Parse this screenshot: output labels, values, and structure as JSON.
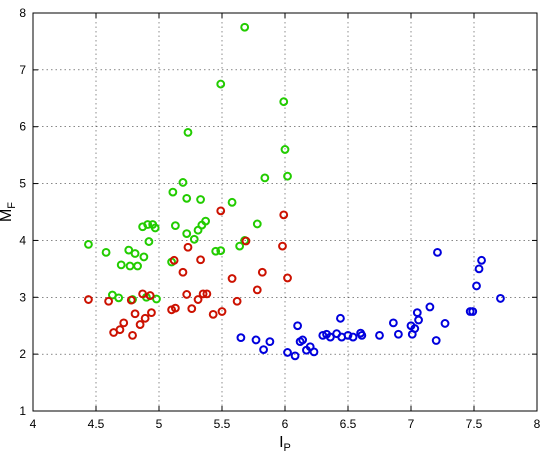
{
  "chart_data": {
    "type": "scatter",
    "title": "",
    "xlabel": {
      "main": "I",
      "sub": "P"
    },
    "ylabel": {
      "main": "M",
      "sub": "F"
    },
    "xlim": [
      4,
      8
    ],
    "ylim": [
      1,
      8
    ],
    "xticks": [
      4,
      4.5,
      5,
      5.5,
      6,
      6.5,
      7,
      7.5,
      8
    ],
    "yticks": [
      1,
      2,
      3,
      4,
      5,
      6,
      7,
      8
    ],
    "xtick_labels": [
      "4",
      "4.5",
      "5",
      "5.5",
      "6",
      "6.5",
      "7",
      "7.5",
      "8"
    ],
    "ytick_labels": [
      "1",
      "2",
      "3",
      "4",
      "5",
      "6",
      "7",
      "8"
    ],
    "grid": true,
    "marker": "circle-open",
    "series": [
      {
        "color": "#22cc00",
        "points": [
          [
            5.68,
            7.75
          ],
          [
            5.49,
            6.75
          ],
          [
            5.99,
            6.44
          ],
          [
            5.23,
            5.9
          ],
          [
            6.0,
            5.6
          ],
          [
            5.19,
            5.02
          ],
          [
            5.84,
            5.1
          ],
          [
            6.02,
            5.13
          ],
          [
            5.11,
            4.85
          ],
          [
            5.22,
            4.74
          ],
          [
            5.33,
            4.72
          ],
          [
            5.58,
            4.67
          ],
          [
            4.44,
            3.93
          ],
          [
            4.58,
            3.79
          ],
          [
            4.76,
            3.83
          ],
          [
            4.81,
            3.77
          ],
          [
            4.87,
            4.24
          ],
          [
            4.91,
            4.28
          ],
          [
            4.95,
            4.28
          ],
          [
            4.97,
            4.22
          ],
          [
            4.92,
            3.98
          ],
          [
            4.88,
            3.71
          ],
          [
            4.7,
            3.57
          ],
          [
            4.77,
            3.55
          ],
          [
            4.83,
            3.55
          ],
          [
            5.13,
            4.26
          ],
          [
            5.22,
            4.12
          ],
          [
            5.28,
            4.02
          ],
          [
            5.31,
            4.18
          ],
          [
            5.34,
            4.27
          ],
          [
            5.37,
            4.34
          ],
          [
            5.45,
            3.81
          ],
          [
            5.49,
            3.82
          ],
          [
            5.64,
            3.9
          ],
          [
            5.68,
            4.0
          ],
          [
            5.78,
            4.29
          ],
          [
            5.1,
            3.62
          ],
          [
            4.63,
            3.04
          ],
          [
            4.68,
            2.99
          ],
          [
            4.79,
            2.96
          ],
          [
            4.9,
            3.0
          ],
          [
            4.98,
            2.97
          ]
        ]
      },
      {
        "color": "#cc1100",
        "points": [
          [
            5.49,
            4.52
          ],
          [
            5.99,
            4.45
          ],
          [
            4.44,
            2.96
          ],
          [
            4.6,
            2.93
          ],
          [
            4.64,
            2.38
          ],
          [
            4.69,
            2.43
          ],
          [
            4.72,
            2.55
          ],
          [
            4.78,
            2.95
          ],
          [
            4.79,
            2.33
          ],
          [
            4.81,
            2.71
          ],
          [
            4.85,
            2.52
          ],
          [
            4.87,
            3.06
          ],
          [
            4.89,
            2.63
          ],
          [
            4.94,
            2.73
          ],
          [
            4.93,
            3.03
          ],
          [
            5.1,
            2.78
          ],
          [
            5.12,
            3.65
          ],
          [
            5.13,
            2.81
          ],
          [
            5.19,
            3.44
          ],
          [
            5.22,
            3.05
          ],
          [
            5.23,
            3.88
          ],
          [
            5.26,
            2.8
          ],
          [
            5.31,
            2.96
          ],
          [
            5.33,
            3.66
          ],
          [
            5.35,
            3.06
          ],
          [
            5.38,
            3.06
          ],
          [
            5.43,
            2.7
          ],
          [
            5.5,
            2.75
          ],
          [
            5.58,
            3.33
          ],
          [
            5.62,
            2.93
          ],
          [
            5.69,
            3.99
          ],
          [
            5.78,
            3.13
          ],
          [
            5.82,
            3.44
          ],
          [
            5.98,
            3.9
          ],
          [
            6.02,
            3.34
          ]
        ]
      },
      {
        "color": "#0000dd",
        "points": [
          [
            5.65,
            2.29
          ],
          [
            5.77,
            2.25
          ],
          [
            5.83,
            2.08
          ],
          [
            5.88,
            2.22
          ],
          [
            6.02,
            2.03
          ],
          [
            6.08,
            1.97
          ],
          [
            6.1,
            2.5
          ],
          [
            6.12,
            2.22
          ],
          [
            6.14,
            2.25
          ],
          [
            6.17,
            2.07
          ],
          [
            6.2,
            2.13
          ],
          [
            6.23,
            2.04
          ],
          [
            6.3,
            2.33
          ],
          [
            6.33,
            2.35
          ],
          [
            6.36,
            2.3
          ],
          [
            6.41,
            2.36
          ],
          [
            6.44,
            2.63
          ],
          [
            6.45,
            2.3
          ],
          [
            6.5,
            2.33
          ],
          [
            6.54,
            2.3
          ],
          [
            6.6,
            2.37
          ],
          [
            6.61,
            2.33
          ],
          [
            6.75,
            2.33
          ],
          [
            6.86,
            2.55
          ],
          [
            6.9,
            2.35
          ],
          [
            7.0,
            2.5
          ],
          [
            7.03,
            2.45
          ],
          [
            7.05,
            2.73
          ],
          [
            7.06,
            2.6
          ],
          [
            7.15,
            2.83
          ],
          [
            7.2,
            2.24
          ],
          [
            7.21,
            3.79
          ],
          [
            7.27,
            2.54
          ],
          [
            7.47,
            2.75
          ],
          [
            7.49,
            2.75
          ],
          [
            7.52,
            3.2
          ],
          [
            7.54,
            3.5
          ],
          [
            7.56,
            3.65
          ],
          [
            7.71,
            2.98
          ],
          [
            7.01,
            2.35
          ]
        ]
      }
    ]
  }
}
